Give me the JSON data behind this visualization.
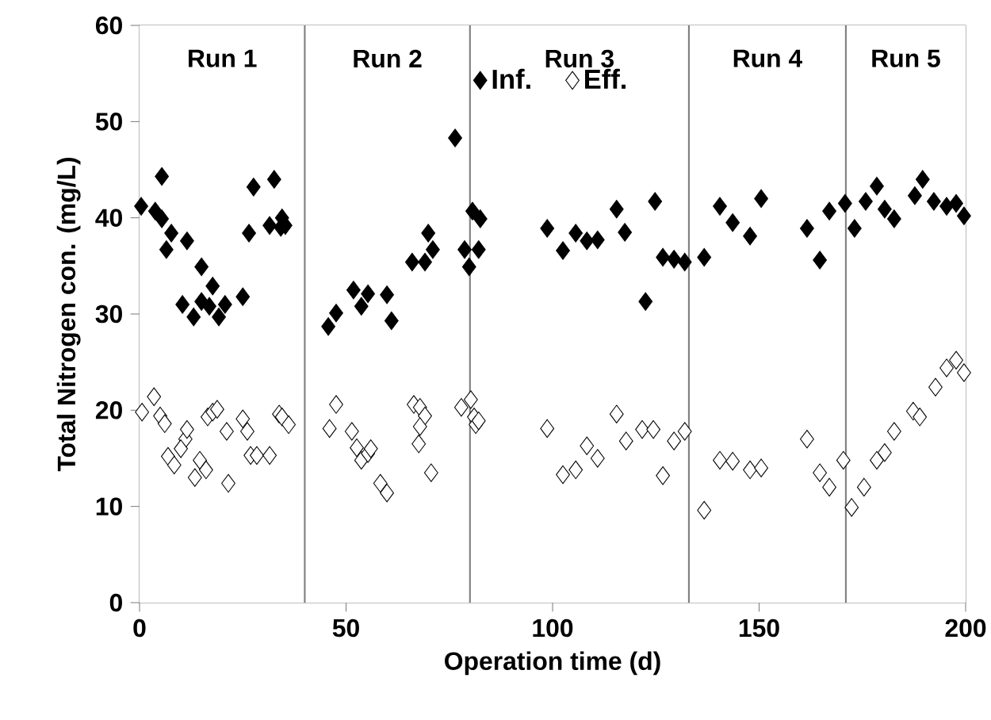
{
  "chart_data": {
    "type": "scatter",
    "xlabel": "Operation time (d)",
    "ylabel": "Total Nitrogen  con. (mg/L)",
    "xlim": [
      0,
      200
    ],
    "xticks": [
      0,
      50,
      100,
      150,
      200
    ],
    "ylim": [
      0,
      60
    ],
    "yticks": [
      0,
      10,
      20,
      30,
      40,
      50,
      60
    ],
    "marker": "diamond",
    "legend": "top",
    "series": [
      {
        "name": "Inf.",
        "color": "#000000",
        "x": [
          0.4,
          5.4,
          3.8,
          5.4,
          7.7,
          6.5,
          11.5,
          15,
          17.7,
          10.4,
          13.1,
          15,
          16.9,
          19.2,
          20.7,
          25,
          26.5,
          27.6,
          32.6,
          31.5,
          34.5,
          35.3,
          34.2,
          45.7,
          47.6,
          51.8,
          53.7,
          55.3,
          59.9,
          61,
          66,
          69.1,
          69.9,
          71,
          76.4,
          78.7,
          79.8,
          82.1,
          80.6,
          82.5,
          98.7,
          102.5,
          105.6,
          108.3,
          110.9,
          115.5,
          117.5,
          122.5,
          124.8,
          126.7,
          129.4,
          132,
          136.7,
          140.5,
          143.6,
          147.8,
          150.5,
          161.6,
          164.7,
          167,
          170.8,
          173.1,
          175.8,
          178.5,
          180.4,
          182.7,
          187.7,
          189.6,
          192.3,
          195.4,
          197.7,
          199.6
        ],
        "values": [
          41.2,
          44.3,
          40.7,
          39.9,
          38.4,
          36.7,
          37.6,
          34.9,
          32.9,
          31.0,
          29.7,
          31.3,
          30.8,
          29.7,
          31.0,
          31.8,
          38.4,
          43.2,
          44.0,
          39.2,
          40.0,
          39.2,
          39.0,
          28.7,
          30.1,
          32.5,
          30.8,
          32.1,
          32.0,
          29.3,
          35.4,
          35.4,
          38.4,
          36.7,
          48.3,
          36.7,
          34.9,
          36.7,
          40.7,
          39.9,
          38.9,
          36.6,
          38.4,
          37.6,
          37.7,
          40.9,
          38.5,
          31.3,
          41.7,
          35.9,
          35.7,
          35.4,
          35.9,
          41.2,
          39.5,
          38.1,
          42.0,
          38.9,
          35.6,
          40.7,
          41.5,
          38.9,
          41.7,
          43.3,
          40.9,
          39.9,
          42.3,
          44.0,
          41.7,
          41.2,
          41.5,
          40.2
        ]
      },
      {
        "name": "Eff.",
        "color": "#ffffff",
        "x": [
          0.6,
          3.5,
          5,
          6.1,
          6.9,
          8.4,
          11.1,
          11.5,
          10,
          13.4,
          14.6,
          16.1,
          16.5,
          17.7,
          18.8,
          21.1,
          21.5,
          25,
          26.1,
          26.9,
          28.4,
          31.5,
          33.8,
          34.5,
          36.1,
          46,
          47.6,
          51.4,
          52.6,
          53.7,
          55.3,
          56,
          58.3,
          59.9,
          66.4,
          67.9,
          69.1,
          67.9,
          67.6,
          70.6,
          77.9,
          80.2,
          81,
          81.4,
          82.1,
          98.7,
          102.5,
          105.6,
          108.3,
          110.9,
          115.5,
          117.8,
          121.7,
          124.4,
          126.7,
          129.4,
          132,
          136.7,
          140.5,
          143.6,
          147.8,
          150.5,
          161.6,
          164.7,
          167,
          170.4,
          172.4,
          175.4,
          178.5,
          180.4,
          182.7,
          187.3,
          188.9,
          192.7,
          195.4,
          197.7,
          199.6
        ],
        "values": [
          19.8,
          21.4,
          19.4,
          18.6,
          15.2,
          14.3,
          17,
          18,
          16,
          13,
          14.8,
          13.8,
          19.3,
          19.8,
          20.1,
          17.8,
          12.4,
          19.1,
          17.8,
          15.3,
          15.3,
          15.3,
          19.6,
          19.3,
          18.5,
          18.1,
          20.6,
          17.8,
          16.1,
          14.8,
          15.5,
          16,
          12.4,
          11.4,
          20.6,
          20.3,
          19.4,
          18.3,
          16.5,
          13.5,
          20.3,
          21.1,
          19.3,
          18.5,
          18.9,
          18.1,
          13.3,
          13.8,
          16.3,
          15,
          19.6,
          16.8,
          18,
          18,
          13.2,
          16.8,
          17.8,
          9.6,
          14.8,
          14.7,
          13.8,
          14,
          17.0,
          13.5,
          12,
          14.8,
          9.9,
          12,
          14.8,
          15.6,
          17.8,
          19.9,
          19.3,
          22.4,
          24.4,
          25.2,
          23.9
        ]
      }
    ],
    "ref_lines": [
      {
        "axis": "x",
        "value": 40,
        "color": "#808080"
      },
      {
        "axis": "x",
        "value": 80,
        "color": "#808080"
      },
      {
        "axis": "x",
        "value": 133,
        "color": "#808080"
      },
      {
        "axis": "x",
        "value": 171,
        "color": "#808080"
      }
    ],
    "bands": [
      {
        "axis": "x",
        "from": 0,
        "to": 40,
        "label": "Run 1",
        "color": "#ffffff"
      },
      {
        "axis": "x",
        "from": 40,
        "to": 80,
        "label": "Run 2",
        "color": "#ffffff"
      },
      {
        "axis": "x",
        "from": 80,
        "to": 133,
        "label": "Run 3",
        "color": "#ffffff"
      },
      {
        "axis": "x",
        "from": 133,
        "to": 171,
        "label": "Run 4",
        "color": "#ffffff"
      },
      {
        "axis": "x",
        "from": 171,
        "to": 200,
        "label": "Run 5",
        "color": "#ffffff"
      }
    ]
  }
}
